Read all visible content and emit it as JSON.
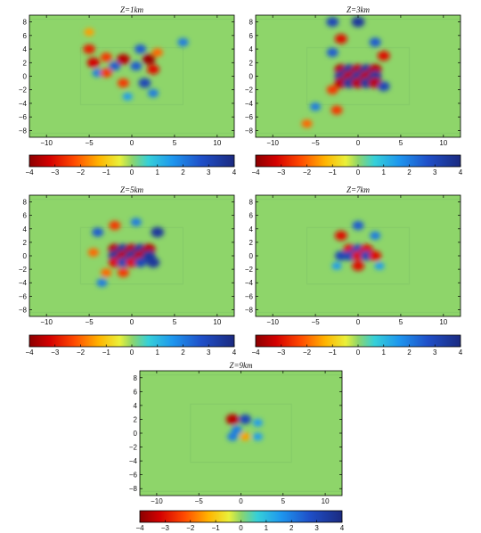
{
  "chart_data": [
    {
      "type": "heatmap",
      "title": "Z=1km",
      "xlim": [
        -12,
        12
      ],
      "ylim": [
        -9,
        9
      ],
      "xticks": [
        -10,
        -5,
        0,
        5,
        10
      ],
      "yticks": [
        8,
        6,
        4,
        2,
        0,
        -2,
        -4,
        -6,
        -8
      ],
      "colorbar": {
        "range": [
          -4,
          4
        ],
        "ticks": [
          -4,
          -3,
          -2,
          -1,
          0,
          1,
          2,
          3,
          4
        ],
        "colormap": "jet-reversed"
      },
      "anomalies": [
        {
          "x": -5.0,
          "y": 4.0,
          "value": -2.8
        },
        {
          "x": -4.5,
          "y": 2.0,
          "value": -3.2
        },
        {
          "x": -3.0,
          "y": 2.8,
          "value": -2.5
        },
        {
          "x": -2.0,
          "y": 1.5,
          "value": 2.5
        },
        {
          "x": -1.0,
          "y": 2.5,
          "value": -3.5
        },
        {
          "x": 0.5,
          "y": 1.5,
          "value": 2.5
        },
        {
          "x": 2.0,
          "y": 2.5,
          "value": -3.8
        },
        {
          "x": 2.5,
          "y": 1.0,
          "value": -3.0
        },
        {
          "x": 1.5,
          "y": -1.0,
          "value": 3.0
        },
        {
          "x": -1.0,
          "y": -1.0,
          "value": -2.5
        },
        {
          "x": -4.0,
          "y": 0.5,
          "value": 2.0
        },
        {
          "x": -3.0,
          "y": 0.5,
          "value": -2.5
        },
        {
          "x": 1.0,
          "y": 4.0,
          "value": 2.5
        },
        {
          "x": 3.0,
          "y": 3.5,
          "value": -2.0
        },
        {
          "x": 2.5,
          "y": -2.5,
          "value": 2.0
        },
        {
          "x": -0.5,
          "y": -3.0,
          "value": 1.5
        },
        {
          "x": 6.0,
          "y": 5.0,
          "value": 2.0
        },
        {
          "x": -5.0,
          "y": 6.5,
          "value": -1.5
        }
      ]
    },
    {
      "type": "heatmap",
      "title": "Z=3km",
      "xlim": [
        -12,
        12
      ],
      "ylim": [
        -9,
        9
      ],
      "xticks": [
        -10,
        -5,
        0,
        5,
        10
      ],
      "yticks": [
        8,
        6,
        4,
        2,
        0,
        -2,
        -4,
        -6,
        -8
      ],
      "colorbar": {
        "range": [
          -4,
          4
        ],
        "ticks": [
          -4,
          -3,
          -2,
          -1,
          0,
          1,
          2,
          3,
          4
        ],
        "colormap": "jet-reversed"
      },
      "anomalies": [
        {
          "x": -3.0,
          "y": 8.0,
          "value": 3.0
        },
        {
          "x": 0.0,
          "y": 8.0,
          "value": 3.5
        },
        {
          "x": -2.0,
          "y": 5.5,
          "value": -3.0
        },
        {
          "x": 2.0,
          "y": 5.0,
          "value": 2.5
        },
        {
          "x": -3.0,
          "y": 3.5,
          "value": 2.5
        },
        {
          "x": 3.0,
          "y": 3.0,
          "value": -3.0
        },
        {
          "x": -2.0,
          "y": 1.0,
          "value": -3.5
        },
        {
          "x": -1.0,
          "y": 1.0,
          "value": 3.5
        },
        {
          "x": 0.0,
          "y": 1.0,
          "value": -3.5
        },
        {
          "x": 1.0,
          "y": 1.0,
          "value": 3.5
        },
        {
          "x": 2.0,
          "y": 1.0,
          "value": -3.5
        },
        {
          "x": -2.0,
          "y": 0.0,
          "value": 3.5
        },
        {
          "x": -1.0,
          "y": 0.0,
          "value": -3.5
        },
        {
          "x": 0.0,
          "y": 0.0,
          "value": 3.5
        },
        {
          "x": 1.0,
          "y": 0.0,
          "value": -3.5
        },
        {
          "x": 2.0,
          "y": 0.0,
          "value": 3.5
        },
        {
          "x": -2.0,
          "y": -1.0,
          "value": -3.5
        },
        {
          "x": -1.0,
          "y": -1.0,
          "value": 3.5
        },
        {
          "x": 0.0,
          "y": -1.0,
          "value": -3.5
        },
        {
          "x": 1.0,
          "y": -1.0,
          "value": 3.5
        },
        {
          "x": 2.0,
          "y": -1.0,
          "value": -3.5
        },
        {
          "x": 3.0,
          "y": -1.5,
          "value": 3.0
        },
        {
          "x": -3.0,
          "y": -2.0,
          "value": -2.5
        },
        {
          "x": -2.5,
          "y": -5.0,
          "value": -2.5
        },
        {
          "x": -5.0,
          "y": -4.5,
          "value": 2.0
        },
        {
          "x": -6.0,
          "y": -7.0,
          "value": -2.0
        }
      ]
    },
    {
      "type": "heatmap",
      "title": "Z=5km",
      "xlim": [
        -12,
        12
      ],
      "ylim": [
        -9,
        9
      ],
      "xticks": [
        -10,
        -5,
        0,
        5,
        10
      ],
      "yticks": [
        8,
        6,
        4,
        2,
        0,
        -2,
        -4,
        -6,
        -8
      ],
      "colorbar": {
        "range": [
          -4,
          4
        ],
        "ticks": [
          -4,
          -3,
          -2,
          -1,
          0,
          1,
          2,
          3,
          4
        ],
        "colormap": "jet-reversed"
      },
      "anomalies": [
        {
          "x": -4.0,
          "y": 3.5,
          "value": 2.5
        },
        {
          "x": -2.0,
          "y": 4.5,
          "value": -2.5
        },
        {
          "x": 0.5,
          "y": 5.0,
          "value": 2.0
        },
        {
          "x": 3.0,
          "y": 3.5,
          "value": 3.5
        },
        {
          "x": -2.0,
          "y": 1.0,
          "value": -3.5
        },
        {
          "x": -1.0,
          "y": 1.0,
          "value": 3.5
        },
        {
          "x": 0.0,
          "y": 1.0,
          "value": -3.5
        },
        {
          "x": 1.0,
          "y": 1.0,
          "value": 3.5
        },
        {
          "x": 2.0,
          "y": 1.0,
          "value": -3.5
        },
        {
          "x": -2.0,
          "y": 0.0,
          "value": 3.5
        },
        {
          "x": -1.0,
          "y": 0.0,
          "value": -3.5
        },
        {
          "x": 0.0,
          "y": 0.0,
          "value": 3.5
        },
        {
          "x": 1.0,
          "y": 0.0,
          "value": -3.5
        },
        {
          "x": 2.0,
          "y": 0.0,
          "value": 3.5
        },
        {
          "x": -2.0,
          "y": -1.0,
          "value": -3.0
        },
        {
          "x": -1.0,
          "y": -1.0,
          "value": 3.0
        },
        {
          "x": 0.0,
          "y": -1.0,
          "value": -3.0
        },
        {
          "x": 1.0,
          "y": -1.0,
          "value": 3.0
        },
        {
          "x": 2.5,
          "y": -1.0,
          "value": 3.5
        },
        {
          "x": -3.0,
          "y": -2.5,
          "value": -2.0
        },
        {
          "x": -1.0,
          "y": -2.5,
          "value": -2.5
        },
        {
          "x": -3.5,
          "y": -4.0,
          "value": 2.0
        },
        {
          "x": -4.5,
          "y": 0.5,
          "value": -2.0
        }
      ]
    },
    {
      "type": "heatmap",
      "title": "Z=7km",
      "xlim": [
        -12,
        12
      ],
      "ylim": [
        -9,
        9
      ],
      "xticks": [
        -10,
        -5,
        0,
        5,
        10
      ],
      "yticks": [
        8,
        6,
        4,
        2,
        0,
        -2,
        -4,
        -6,
        -8
      ],
      "colorbar": {
        "range": [
          -4,
          4
        ],
        "ticks": [
          -4,
          -3,
          -2,
          -1,
          0,
          1,
          2,
          3,
          4
        ],
        "colormap": "jet-reversed"
      },
      "anomalies": [
        {
          "x": -2.0,
          "y": 3.0,
          "value": -3.0
        },
        {
          "x": 0.0,
          "y": 4.5,
          "value": 2.5
        },
        {
          "x": 2.0,
          "y": 3.0,
          "value": 2.0
        },
        {
          "x": -1.0,
          "y": 1.0,
          "value": -3.0
        },
        {
          "x": 0.0,
          "y": 1.0,
          "value": 3.0
        },
        {
          "x": 1.0,
          "y": 1.0,
          "value": -3.0
        },
        {
          "x": -1.0,
          "y": 0.0,
          "value": 3.0
        },
        {
          "x": 0.0,
          "y": 0.0,
          "value": -3.0
        },
        {
          "x": 1.0,
          "y": 0.0,
          "value": 3.0
        },
        {
          "x": 2.0,
          "y": 0.0,
          "value": -3.0
        },
        {
          "x": -2.0,
          "y": 0.0,
          "value": 3.0
        },
        {
          "x": 0.0,
          "y": -1.5,
          "value": -3.0
        },
        {
          "x": -2.5,
          "y": -1.5,
          "value": 1.5
        },
        {
          "x": 2.5,
          "y": -1.5,
          "value": 1.5
        }
      ]
    },
    {
      "type": "heatmap",
      "title": "Z=9km",
      "xlim": [
        -12,
        12
      ],
      "ylim": [
        -9,
        9
      ],
      "xticks": [
        -10,
        -5,
        0,
        5,
        10
      ],
      "yticks": [
        8,
        6,
        4,
        2,
        0,
        -2,
        -4,
        -6,
        -8
      ],
      "colorbar": {
        "range": [
          -4,
          4
        ],
        "ticks": [
          -4,
          -3,
          -2,
          -1,
          0,
          1,
          2,
          3,
          4
        ],
        "colormap": "jet-reversed"
      },
      "anomalies": [
        {
          "x": -1.0,
          "y": 2.0,
          "value": -3.5
        },
        {
          "x": 0.5,
          "y": 2.0,
          "value": 3.0
        },
        {
          "x": 2.0,
          "y": 1.5,
          "value": 1.5
        },
        {
          "x": -0.5,
          "y": 0.5,
          "value": 2.0
        },
        {
          "x": 0.5,
          "y": -0.5,
          "value": -1.5
        },
        {
          "x": -1.0,
          "y": -0.5,
          "value": 2.0
        },
        {
          "x": 2.0,
          "y": -0.5,
          "value": 1.5
        }
      ]
    }
  ]
}
